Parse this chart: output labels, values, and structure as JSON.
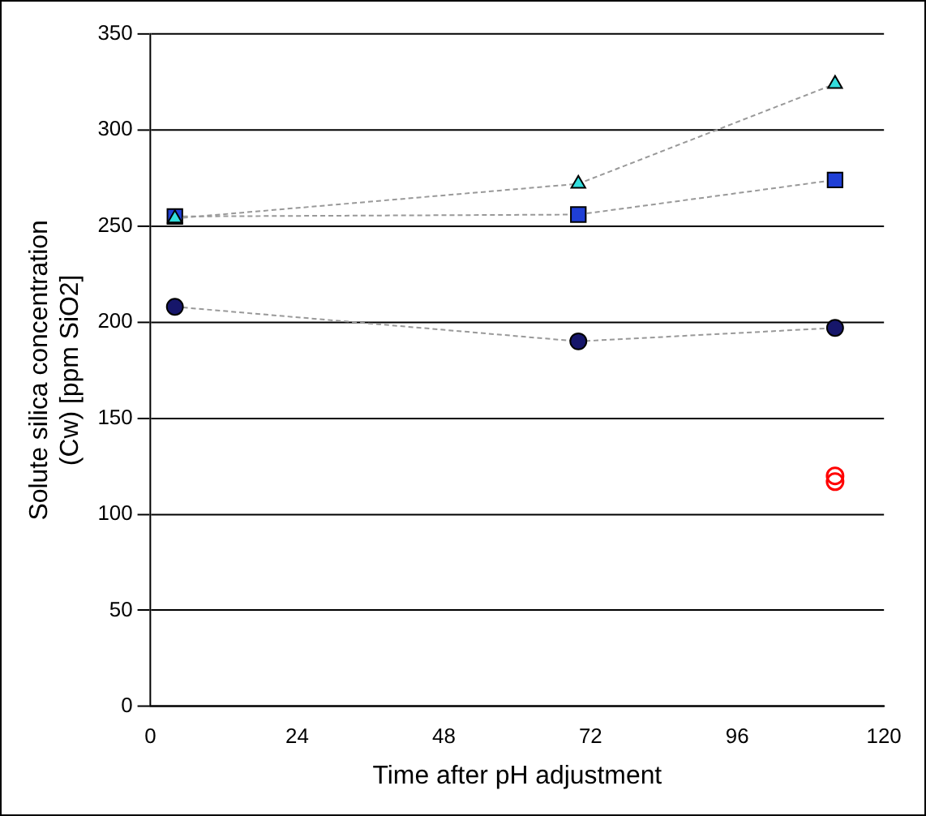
{
  "chart_data": {
    "type": "line",
    "xlabel": "Time after pH adjustment",
    "ylabel": "Solute silica concentration (Cw) [ppm SiO2]",
    "x": [
      4,
      70,
      112
    ],
    "xlim": [
      0,
      120
    ],
    "xticks": [
      0,
      24,
      48,
      72,
      96,
      120
    ],
    "ylim": [
      0,
      350
    ],
    "yticks": [
      0,
      50,
      100,
      150,
      200,
      250,
      300,
      350
    ],
    "grid": "y",
    "legend": false,
    "line_style": "dashed",
    "series": [
      {
        "color": "#33dede",
        "marker": "triangle",
        "values": [
          254,
          272,
          324
        ]
      },
      {
        "color": "#1f3fd6",
        "marker": "square",
        "values": [
          255,
          256,
          274
        ]
      },
      {
        "color": "#16166a",
        "marker": "circle",
        "values": [
          208,
          190,
          197
        ]
      },
      {
        "type": "scatter",
        "color": "#ff0000",
        "marker": "circle",
        "x": [
          112,
          112
        ],
        "values": [
          120,
          117
        ]
      }
    ]
  }
}
